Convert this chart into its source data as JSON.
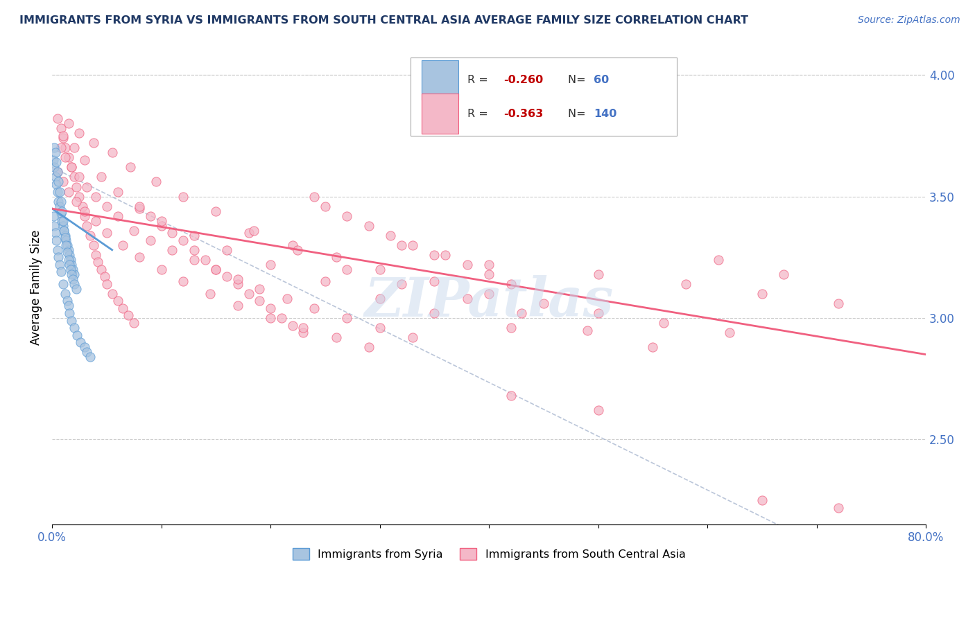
{
  "title": "IMMIGRANTS FROM SYRIA VS IMMIGRANTS FROM SOUTH CENTRAL ASIA AVERAGE FAMILY SIZE CORRELATION CHART",
  "source_text": "Source: ZipAtlas.com",
  "ylabel": "Average Family Size",
  "xlim": [
    0.0,
    0.8
  ],
  "ylim": [
    2.15,
    4.1
  ],
  "right_yticks": [
    2.5,
    3.0,
    3.5,
    4.0
  ],
  "r_syria": -0.26,
  "n_syria": 60,
  "r_sca": -0.363,
  "n_sca": 140,
  "color_syria_fill": "#a8c4e0",
  "color_syria_edge": "#5b9bd5",
  "color_sca_fill": "#f4b8c8",
  "color_sca_edge": "#f06080",
  "color_syria_line": "#5b9bd5",
  "color_sca_line": "#f06080",
  "color_dashed": "#aab8d0",
  "title_color": "#1f3864",
  "axis_color": "#4472c4",
  "legend_r_color": "#c00000",
  "legend_n_color": "#4472c4",
  "watermark_text": "ZIPatlas",
  "syria_scatter_x": [
    0.001,
    0.002,
    0.003,
    0.004,
    0.005,
    0.006,
    0.007,
    0.008,
    0.009,
    0.01,
    0.011,
    0.012,
    0.013,
    0.014,
    0.015,
    0.016,
    0.017,
    0.018,
    0.019,
    0.02,
    0.002,
    0.003,
    0.004,
    0.005,
    0.006,
    0.007,
    0.008,
    0.009,
    0.01,
    0.011,
    0.012,
    0.013,
    0.014,
    0.015,
    0.016,
    0.017,
    0.018,
    0.019,
    0.02,
    0.022,
    0.001,
    0.002,
    0.003,
    0.004,
    0.005,
    0.006,
    0.007,
    0.008,
    0.01,
    0.012,
    0.014,
    0.015,
    0.016,
    0.018,
    0.02,
    0.023,
    0.026,
    0.03,
    0.032,
    0.035
  ],
  "syria_scatter_y": [
    3.65,
    3.62,
    3.58,
    3.55,
    3.52,
    3.48,
    3.46,
    3.43,
    3.4,
    3.38,
    3.36,
    3.34,
    3.32,
    3.3,
    3.28,
    3.26,
    3.24,
    3.22,
    3.2,
    3.18,
    3.7,
    3.68,
    3.64,
    3.6,
    3.56,
    3.52,
    3.48,
    3.44,
    3.4,
    3.36,
    3.33,
    3.3,
    3.27,
    3.24,
    3.22,
    3.2,
    3.18,
    3.16,
    3.14,
    3.12,
    3.42,
    3.38,
    3.35,
    3.32,
    3.28,
    3.25,
    3.22,
    3.19,
    3.14,
    3.1,
    3.07,
    3.05,
    3.02,
    2.99,
    2.96,
    2.93,
    2.9,
    2.88,
    2.86,
    2.84
  ],
  "sca_scatter_x": [
    0.005,
    0.008,
    0.01,
    0.012,
    0.015,
    0.018,
    0.02,
    0.022,
    0.025,
    0.028,
    0.03,
    0.032,
    0.035,
    0.038,
    0.04,
    0.042,
    0.045,
    0.048,
    0.05,
    0.055,
    0.06,
    0.065,
    0.07,
    0.075,
    0.08,
    0.09,
    0.1,
    0.11,
    0.12,
    0.13,
    0.14,
    0.15,
    0.16,
    0.17,
    0.18,
    0.19,
    0.2,
    0.21,
    0.22,
    0.23,
    0.24,
    0.25,
    0.27,
    0.29,
    0.31,
    0.33,
    0.35,
    0.38,
    0.4,
    0.42,
    0.008,
    0.012,
    0.018,
    0.025,
    0.032,
    0.04,
    0.05,
    0.06,
    0.075,
    0.09,
    0.11,
    0.13,
    0.15,
    0.17,
    0.19,
    0.215,
    0.24,
    0.27,
    0.3,
    0.33,
    0.005,
    0.01,
    0.015,
    0.022,
    0.03,
    0.04,
    0.05,
    0.065,
    0.08,
    0.1,
    0.12,
    0.145,
    0.17,
    0.2,
    0.23,
    0.26,
    0.29,
    0.32,
    0.36,
    0.4,
    0.01,
    0.02,
    0.03,
    0.045,
    0.06,
    0.08,
    0.1,
    0.13,
    0.16,
    0.2,
    0.25,
    0.3,
    0.35,
    0.42,
    0.5,
    0.58,
    0.65,
    0.72,
    0.65,
    0.72,
    0.18,
    0.22,
    0.26,
    0.3,
    0.35,
    0.4,
    0.45,
    0.5,
    0.56,
    0.62,
    0.015,
    0.025,
    0.038,
    0.055,
    0.072,
    0.095,
    0.12,
    0.15,
    0.185,
    0.225,
    0.27,
    0.32,
    0.38,
    0.43,
    0.49,
    0.55,
    0.61,
    0.67,
    0.5,
    0.42
  ],
  "sca_scatter_y": [
    3.82,
    3.78,
    3.74,
    3.7,
    3.66,
    3.62,
    3.58,
    3.54,
    3.5,
    3.46,
    3.42,
    3.38,
    3.34,
    3.3,
    3.26,
    3.23,
    3.2,
    3.17,
    3.14,
    3.1,
    3.07,
    3.04,
    3.01,
    2.98,
    3.45,
    3.42,
    3.38,
    3.35,
    3.32,
    3.28,
    3.24,
    3.2,
    3.17,
    3.14,
    3.1,
    3.07,
    3.04,
    3.0,
    2.97,
    2.94,
    3.5,
    3.46,
    3.42,
    3.38,
    3.34,
    3.3,
    3.26,
    3.22,
    3.18,
    3.14,
    3.7,
    3.66,
    3.62,
    3.58,
    3.54,
    3.5,
    3.46,
    3.42,
    3.36,
    3.32,
    3.28,
    3.24,
    3.2,
    3.16,
    3.12,
    3.08,
    3.04,
    3.0,
    2.96,
    2.92,
    3.6,
    3.56,
    3.52,
    3.48,
    3.44,
    3.4,
    3.35,
    3.3,
    3.25,
    3.2,
    3.15,
    3.1,
    3.05,
    3.0,
    2.96,
    2.92,
    2.88,
    3.3,
    3.26,
    3.22,
    3.75,
    3.7,
    3.65,
    3.58,
    3.52,
    3.46,
    3.4,
    3.34,
    3.28,
    3.22,
    3.15,
    3.08,
    3.02,
    2.96,
    3.18,
    3.14,
    3.1,
    3.06,
    2.25,
    2.22,
    3.35,
    3.3,
    3.25,
    3.2,
    3.15,
    3.1,
    3.06,
    3.02,
    2.98,
    2.94,
    3.8,
    3.76,
    3.72,
    3.68,
    3.62,
    3.56,
    3.5,
    3.44,
    3.36,
    3.28,
    3.2,
    3.14,
    3.08,
    3.02,
    2.95,
    2.88,
    3.24,
    3.18,
    2.62,
    2.68
  ],
  "syria_line_x": [
    0.0,
    0.055
  ],
  "syria_line_y": [
    3.45,
    3.28
  ],
  "sca_line_x": [
    0.0,
    0.8
  ],
  "sca_line_y": [
    3.45,
    2.85
  ],
  "dashed_line_x": [
    0.0,
    0.8
  ],
  "dashed_line_y": [
    3.62,
    1.85
  ]
}
